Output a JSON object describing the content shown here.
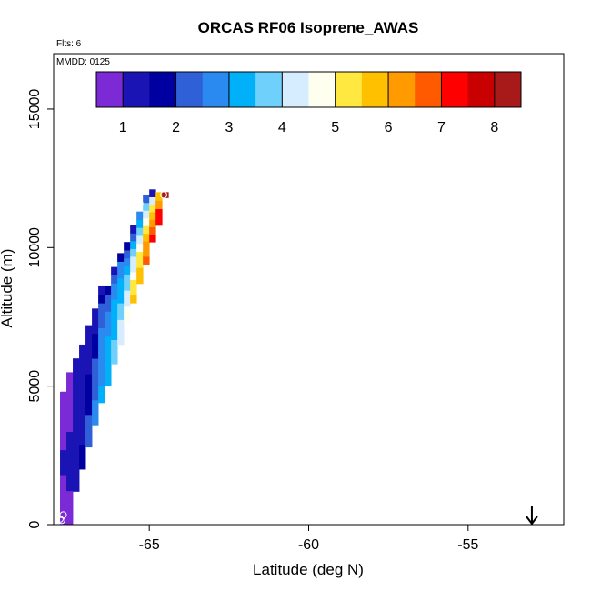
{
  "chart_data": {
    "type": "heatmap",
    "title": "ORCAS RF06 Isoprene_AWAS",
    "flights_label": "Flts: 6",
    "date_label": "MMDD: 0125",
    "xlabel": "Latitude (deg N)",
    "ylabel": "Altitude (m)",
    "xlim": [
      -68.0,
      -52.0
    ],
    "ylim": [
      0,
      17000
    ],
    "x_ticks": [
      -65,
      -60,
      -55
    ],
    "x_tick_labels": [
      "-65",
      "-60",
      "-55"
    ],
    "y_ticks": [
      0,
      5000,
      10000,
      15000
    ],
    "y_tick_labels": [
      "0",
      "5000",
      "10000",
      "15000"
    ],
    "colorbar": {
      "vmin": 0.5,
      "vmax": 8.5,
      "ticks": [
        1,
        2,
        3,
        4,
        5,
        6,
        7,
        8
      ],
      "tick_labels": [
        "1",
        "2",
        "3",
        "4",
        "5",
        "6",
        "7",
        "8"
      ],
      "colors": [
        "#7b2ad6",
        "#1a14b4",
        "#0000a0",
        "#3060d8",
        "#2a8af0",
        "#00b0f8",
        "#70d0fc",
        "#d6ecff",
        "#fffff0",
        "#ffe840",
        "#ffc000",
        "#ff9a00",
        "#ff5a00",
        "#ff0000",
        "#c80000",
        "#a81a1a"
      ]
    },
    "cell_size": {
      "lat": 0.2,
      "alt": 300
    },
    "cells": [
      {
        "lat": -67.8,
        "alt_min": 0,
        "alt_max": 4800,
        "values": [
          0.5,
          0.55,
          0.6,
          0.7,
          0.8,
          0.9,
          1.0,
          1.1,
          1.0,
          0.9,
          0.8,
          0.7,
          0.6,
          0.55,
          0.5,
          0.5
        ]
      },
      {
        "lat": -67.6,
        "alt_min": 0,
        "alt_max": 5500,
        "values": [
          0.6,
          0.7,
          0.8,
          0.9,
          1.0,
          1.1,
          1.2,
          1.2,
          1.1,
          1.0,
          1.0,
          0.9,
          0.9,
          0.9,
          0.8,
          0.8,
          0.8,
          0.8
        ]
      },
      {
        "lat": -67.4,
        "alt_min": 1200,
        "alt_max": 6000,
        "values": [
          1.0,
          1.1,
          1.2,
          1.3,
          1.4,
          1.4,
          1.3,
          1.2,
          1.2,
          1.1,
          1.1,
          1.0,
          1.0,
          1.0,
          1.0,
          1.0
        ]
      },
      {
        "lat": -67.2,
        "alt_min": 2000,
        "alt_max": 6500,
        "values": [
          1.6,
          1.5,
          1.5,
          1.4,
          1.4,
          1.3,
          1.3,
          1.2,
          1.2,
          1.1,
          1.1,
          1.1,
          1.0,
          1.0,
          1.0
        ]
      },
      {
        "lat": -67.0,
        "alt_min": 2800,
        "alt_max": 7200,
        "values": [
          2.3,
          2.2,
          2.1,
          2.0,
          1.9,
          1.8,
          1.7,
          1.6,
          1.5,
          1.4,
          1.3,
          1.2,
          1.1,
          1.0,
          1.0
        ]
      },
      {
        "lat": -66.8,
        "alt_min": 3600,
        "alt_max": 7800,
        "values": [
          2.7,
          2.6,
          2.5,
          2.4,
          2.3,
          2.2,
          2.1,
          2.0,
          1.9,
          1.8,
          1.6,
          1.4,
          1.2,
          1.0
        ]
      },
      {
        "lat": -66.6,
        "alt_min": 4400,
        "alt_max": 8600,
        "values": [
          3.0,
          3.0,
          2.9,
          2.9,
          2.8,
          2.8,
          2.7,
          2.6,
          2.5,
          2.4,
          2.2,
          2.0,
          1.6,
          1.0
        ]
      },
      {
        "lat": -66.4,
        "alt_min": 5000,
        "alt_max": 8600,
        "values": [
          3.4,
          3.3,
          3.2,
          3.1,
          3.0,
          3.0,
          2.9,
          2.8,
          2.6,
          2.4,
          2.2,
          1.8
        ]
      },
      {
        "lat": -66.2,
        "alt_min": 5800,
        "alt_max": 9300,
        "values": [
          3.9,
          3.7,
          3.6,
          3.4,
          3.3,
          3.2,
          3.1,
          3.0,
          2.8,
          2.6,
          2.2,
          1.2
        ]
      },
      {
        "lat": -66.0,
        "alt_min": 6500,
        "alt_max": 9800,
        "values": [
          4.4,
          4.2,
          4.0,
          3.8,
          3.6,
          3.4,
          3.2,
          3.0,
          2.8,
          2.5,
          1.6
        ]
      },
      {
        "lat": -65.8,
        "alt_min": 7300,
        "alt_max": 10200,
        "values": [
          4.8,
          4.5,
          4.3,
          4.0,
          3.8,
          3.5,
          3.2,
          2.9,
          2.4,
          1.8
        ]
      },
      {
        "lat": -65.6,
        "alt_min": 8000,
        "alt_max": 10800,
        "values": [
          5.7,
          5.3,
          5.0,
          4.7,
          4.4,
          4.0,
          3.6,
          3.1,
          2.4,
          1.2
        ]
      },
      {
        "lat": -65.4,
        "alt_min": 8700,
        "alt_max": 11300,
        "values": [
          5.9,
          5.7,
          5.4,
          5.1,
          4.8,
          4.3,
          3.8,
          3.2,
          2.8
        ]
      },
      {
        "lat": -65.2,
        "alt_min": 9400,
        "alt_max": 11900,
        "values": [
          6.5,
          6.2,
          6.0,
          5.6,
          5.3,
          4.8,
          4.2,
          3.6,
          2.2
        ]
      },
      {
        "lat": -65.0,
        "alt_min": 10200,
        "alt_max": 12100,
        "values": [
          7.0,
          6.6,
          6.0,
          5.6,
          5.0,
          4.2,
          1.0
        ]
      },
      {
        "lat": -64.8,
        "alt_min": 10800,
        "alt_max": 12000,
        "values": [
          7.2,
          7.0,
          6.4,
          5.9
        ]
      },
      {
        "lat": -64.6,
        "alt_min": 11800,
        "alt_max": 12000,
        "values": [
          8.3
        ]
      }
    ],
    "sample_points": [
      {
        "lat": -67.85,
        "alt": 4900
      },
      {
        "lat": -67.8,
        "alt": 200
      },
      {
        "lat": -67.7,
        "alt": 350
      },
      {
        "lat": -67.75,
        "alt": 150
      },
      {
        "lat": -65.3,
        "alt": 11600
      },
      {
        "lat": -64.55,
        "alt": 11900
      }
    ],
    "arrow": {
      "lat": -53.0,
      "direction": "down"
    }
  }
}
